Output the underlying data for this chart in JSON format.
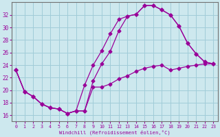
{
  "xlabel": "Windchill (Refroidissement éolien,°C)",
  "bg_color": "#cde8ee",
  "grid_color": "#a0ccd8",
  "line_color": "#990099",
  "xlim": [
    -0.5,
    23.5
  ],
  "ylim": [
    15.0,
    34.0
  ],
  "yticks": [
    16,
    18,
    20,
    22,
    24,
    26,
    28,
    30,
    32
  ],
  "xticks": [
    0,
    1,
    2,
    3,
    4,
    5,
    6,
    7,
    8,
    9,
    10,
    11,
    12,
    13,
    14,
    15,
    16,
    17,
    18,
    19,
    20,
    21,
    22,
    23
  ],
  "series1_x": [
    0,
    1,
    2,
    3,
    4,
    5,
    6,
    7,
    8,
    9,
    10,
    11,
    12,
    13,
    14,
    15,
    16,
    17,
    18,
    19,
    20,
    21,
    22,
    23
  ],
  "series1_y": [
    23.2,
    19.8,
    19.0,
    17.8,
    17.2,
    17.0,
    16.3,
    16.7,
    16.7,
    20.5,
    20.5,
    21.0,
    21.8,
    22.3,
    23.0,
    23.5,
    23.8,
    24.0,
    23.2,
    23.5,
    23.8,
    24.0,
    24.2,
    24.2
  ],
  "series2_x": [
    0,
    1,
    2,
    3,
    4,
    5,
    6,
    7,
    8,
    9,
    10,
    11,
    12,
    13,
    14,
    15,
    16,
    17,
    18,
    19,
    20,
    21,
    22,
    23
  ],
  "series2_y": [
    23.2,
    19.8,
    19.0,
    17.8,
    17.2,
    17.0,
    16.3,
    16.7,
    16.7,
    21.5,
    24.2,
    26.2,
    29.5,
    31.8,
    32.1,
    33.5,
    33.5,
    32.8,
    32.0,
    30.2,
    27.5,
    25.8,
    24.5,
    24.2
  ],
  "series3_x": [
    0,
    1,
    2,
    3,
    4,
    5,
    6,
    7,
    8,
    9,
    10,
    11,
    12,
    13,
    14,
    15,
    16,
    17,
    18,
    19,
    20,
    21,
    22,
    23
  ],
  "series3_y": [
    23.2,
    19.8,
    19.0,
    17.8,
    17.2,
    17.0,
    16.3,
    16.7,
    20.8,
    24.0,
    26.3,
    29.0,
    31.3,
    31.8,
    32.1,
    33.5,
    33.5,
    32.8,
    32.0,
    30.2,
    27.5,
    25.8,
    24.5,
    24.2
  ]
}
